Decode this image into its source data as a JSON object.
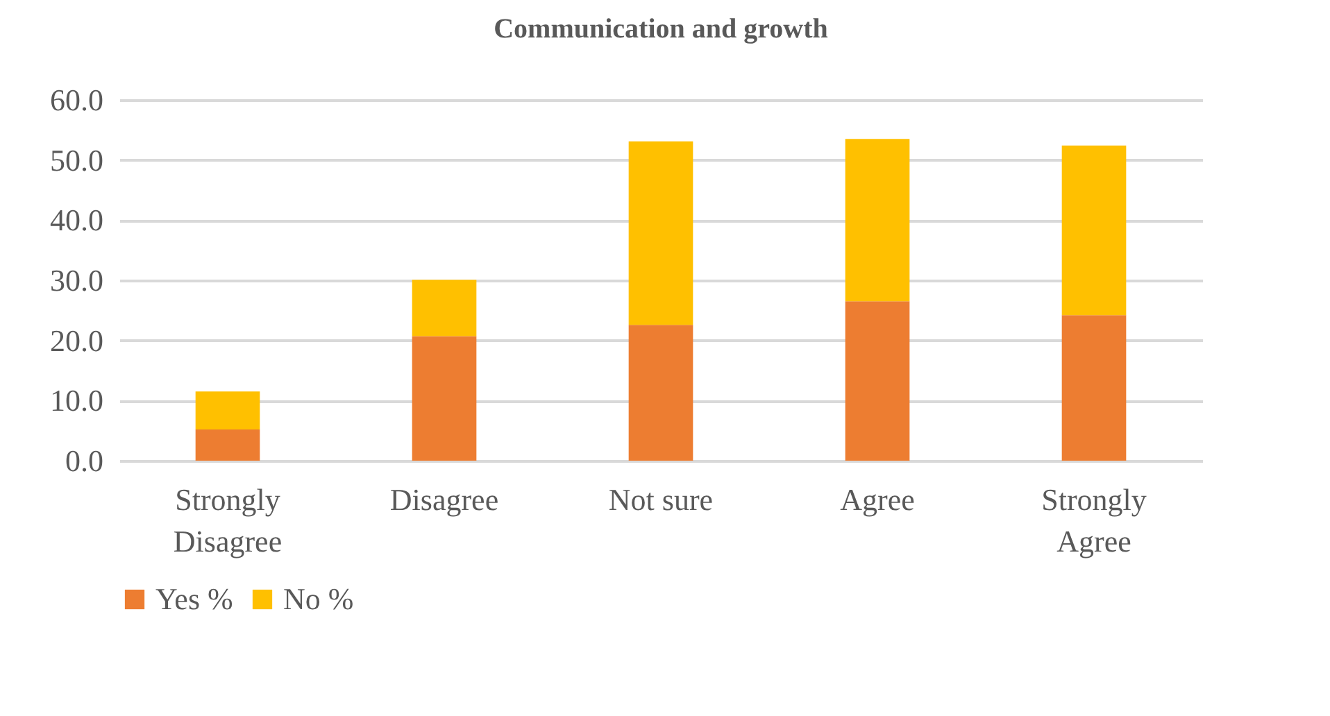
{
  "chart_data": {
    "type": "bar",
    "title": "Communication and growth",
    "stacked": true,
    "categories": [
      "Strongly Disagree",
      "Disagree",
      "Not sure",
      "Agree",
      "Strongly Agree"
    ],
    "series": [
      {
        "name": "Yes %",
        "color": "#ed7d31",
        "values": [
          5.2,
          20.7,
          22.6,
          26.5,
          24.2
        ]
      },
      {
        "name": "No %",
        "color": "#ffc000",
        "values": [
          6.3,
          9.4,
          30.5,
          27.0,
          28.2
        ]
      }
    ],
    "ylim": [
      0,
      60
    ],
    "yticks": [
      {
        "value": 0,
        "label": "0.0"
      },
      {
        "value": 10,
        "label": "10.0"
      },
      {
        "value": 20,
        "label": "20.0"
      },
      {
        "value": 30,
        "label": "30.0"
      },
      {
        "value": 40,
        "label": "40.0"
      },
      {
        "value": 50,
        "label": "50.0"
      },
      {
        "value": 60,
        "label": "60.0"
      }
    ],
    "grid": "y",
    "legend": "bottom"
  }
}
